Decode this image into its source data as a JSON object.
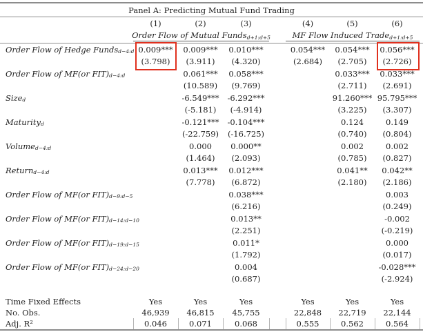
{
  "panel_title": "Panel A: Predicting Mutual Fund Trading",
  "column_numbers": [
    "(1)",
    "(2)",
    "(3)",
    "(4)",
    "(5)",
    "(6)"
  ],
  "groups": [
    {
      "name": "Order Flow of Mutual Funds",
      "sub": "d+1:d+5"
    },
    {
      "name": "MF Flow Induced Trade",
      "sub": "d+1:d+5"
    }
  ],
  "rows": [
    {
      "label": "Order Flow of Hedge Funds",
      "sub": "d−4:d",
      "est": [
        "0.009***",
        "0.009***",
        "0.010***",
        "0.054***",
        "0.054***",
        "0.056***"
      ],
      "tstat": [
        "(3.798)",
        "(3.911)",
        "(4.320)",
        "(2.684)",
        "(2.705)",
        "(2.726)"
      ]
    },
    {
      "label": "Order Flow of MF(or FIT)",
      "sub": "d−4:d",
      "est": [
        "",
        "0.061***",
        "0.058***",
        "",
        "0.033***",
        "0.033***"
      ],
      "tstat": [
        "",
        "(10.589)",
        "(9.769)",
        "",
        "(2.711)",
        "(2.691)"
      ]
    },
    {
      "label": "Size",
      "sub": "d",
      "est": [
        "",
        "-6.549***",
        "-6.292***",
        "",
        "91.260***",
        "95.795***"
      ],
      "tstat": [
        "",
        "(-5.181)",
        "(-4.914)",
        "",
        "(3.225)",
        "(3.307)"
      ]
    },
    {
      "label": "Maturity",
      "sub": "d",
      "est": [
        "",
        "-0.121***",
        "-0.104***",
        "",
        "0.124",
        "0.149"
      ],
      "tstat": [
        "",
        "(-22.759)",
        "(-16.725)",
        "",
        "(0.740)",
        "(0.804)"
      ]
    },
    {
      "label": "Volume",
      "sub": "d−4:d",
      "est": [
        "",
        "0.000",
        "0.000**",
        "",
        "0.002",
        "0.002"
      ],
      "tstat": [
        "",
        "(1.464)",
        "(2.093)",
        "",
        "(0.785)",
        "(0.827)"
      ]
    },
    {
      "label": "Return",
      "sub": "d−4:d",
      "est": [
        "",
        "0.013***",
        "0.012***",
        "",
        "0.041**",
        "0.042**"
      ],
      "tstat": [
        "",
        "(7.778)",
        "(6.872)",
        "",
        "(2.180)",
        "(2.186)"
      ]
    },
    {
      "label": "Order Flow of MF(or FIT)",
      "sub": "d−9:d−5",
      "est": [
        "",
        "",
        "0.038***",
        "",
        "",
        "0.003"
      ],
      "tstat": [
        "",
        "",
        "(6.216)",
        "",
        "",
        "(0.249)"
      ]
    },
    {
      "label": "Order Flow of MF(or FIT)",
      "sub": "d−14:d−10",
      "est": [
        "",
        "",
        "0.013**",
        "",
        "",
        "-0.002"
      ],
      "tstat": [
        "",
        "",
        "(2.251)",
        "",
        "",
        "(-0.219)"
      ]
    },
    {
      "label": "Order Flow of MF(or FIT)",
      "sub": "d−19:d−15",
      "est": [
        "",
        "",
        "0.011*",
        "",
        "",
        "0.000"
      ],
      "tstat": [
        "",
        "",
        "(1.792)",
        "",
        "",
        "(0.017)"
      ]
    },
    {
      "label": "Order Flow of MF(or FIT)",
      "sub": "d−24:d−20",
      "est": [
        "",
        "",
        "0.004",
        "",
        "",
        "-0.028***"
      ],
      "tstat": [
        "",
        "",
        "(0.687)",
        "",
        "",
        "(-2.924)"
      ]
    }
  ],
  "footer_rows": [
    {
      "label": "Time Fixed Effects",
      "values": [
        "Yes",
        "Yes",
        "Yes",
        "Yes",
        "Yes",
        "Yes"
      ]
    },
    {
      "label": "No. Obs.",
      "values": [
        "46,939",
        "46,815",
        "45,755",
        "22,848",
        "22,719",
        "22,144"
      ]
    },
    {
      "label": "Adj. R²",
      "values": [
        "0.046",
        "0.071",
        "0.068",
        "0.555",
        "0.562",
        "0.564"
      ]
    }
  ],
  "highlights": {
    "color": "#e0301e",
    "boxes": [
      {
        "row_label": "Order Flow of Hedge Funds",
        "column": "(1)",
        "cell_values": [
          "0.009***",
          "(3.798)"
        ]
      },
      {
        "row_label": "Order Flow of Hedge Funds",
        "column": "(6)",
        "cell_values": [
          "0.056***",
          "(2.726)"
        ]
      }
    ]
  }
}
